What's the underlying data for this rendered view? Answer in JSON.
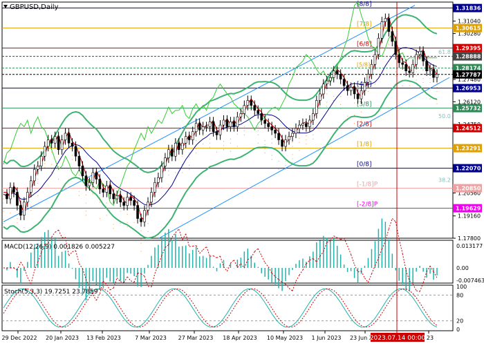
{
  "symbol_label": "GBPUSD,Daily",
  "macd_label": "MACD(12,26,9) 0.001826 0.005227",
  "stoch_label": "Stoch(5,3,3) 19.7251 23.7859",
  "colors": {
    "resistance": "#cc0000",
    "support": "#00008b",
    "murray_gold": "#e0a000",
    "green_line": "#00a000",
    "channel": "#1e90ff",
    "bollinger": "#3cb371",
    "envelope": "#32cd32",
    "macd_hist": "#20b2aa",
    "cloud": "#f4a460",
    "fib": "#aadcdc",
    "minus2": "#ee00ee",
    "cursor": "#cc0000"
  },
  "chart_data": {
    "type": "line",
    "title": "GBPUSD,Daily",
    "ylim": [
      1.178,
      1.322
    ],
    "price_ticks": [
      "1.31040",
      "1.30280",
      "1.28020",
      "1.27480",
      "1.26120",
      "1.24750",
      "1.20560",
      "1.19160",
      "1.17800"
    ],
    "date_labels": [
      "29 Dec 2022",
      "20 Jan 2023",
      "13 Feb 2023",
      "7 Mar 2023",
      "27 Mar 2023",
      "18 Apr 2023",
      "10 May 2023",
      "1 Jun 2023",
      "23 Jun 2023",
      "23"
    ],
    "cursor_date": "2023.07.14 00:00",
    "levels": [
      {
        "label": "[8/8]",
        "price": "1.31836",
        "value": 1.31836,
        "color": "#00008b",
        "box": "#00008b"
      },
      {
        "label": "[7/8]",
        "price": "1.30615",
        "value": 1.30615,
        "color": "#e0a000",
        "box": "#e0a000"
      },
      {
        "label": "[6/8]",
        "price": "1.29395",
        "value": 1.29395,
        "color": "#cc0000",
        "box": "#cc0000"
      },
      {
        "label": "",
        "price": "1.28888",
        "value": 1.28888,
        "color": "#444444",
        "box": "#444444"
      },
      {
        "label": "",
        "price": "1.28174",
        "value": 1.28174,
        "color": "#2e8b57",
        "box": "#2e8b57"
      },
      {
        "label": "",
        "price": "1.27787",
        "value": 1.27787,
        "color": "#000000",
        "box": "#000000"
      },
      {
        "label": "[4/8]",
        "price": "1.26953",
        "value": 1.26953,
        "color": "#00008b",
        "box": "#00008b"
      },
      {
        "label": "[3/8]",
        "price": "1.25732",
        "value": 1.25732,
        "color": "#2e8b57",
        "box": "#2e8b57"
      },
      {
        "label": "[2/8]",
        "price": "1.24512",
        "value": 1.24512,
        "color": "#cc0000",
        "box": "#cc0000"
      },
      {
        "label": "[1/8]",
        "price": "1.23291",
        "value": 1.23291,
        "color": "#e0a000",
        "box": "#e0a000"
      },
      {
        "label": "[0/8]",
        "price": "1.22070",
        "value": 1.2207,
        "color": "#00008b",
        "box": "#00008b"
      },
      {
        "label": "[-1/8]P",
        "price": "1.20850",
        "value": 1.2085,
        "color": "#f0a0a0",
        "box": "#f0a0a0"
      },
      {
        "label": "[-2/8]P",
        "price": "1.19629",
        "value": 1.19629,
        "color": "#ee00ee",
        "box": "#ee00ee"
      }
    ],
    "extra_level_labels": [
      {
        "label": "[5/8]",
        "value": 1.2817
      },
      {
        "label": "61.8",
        "value": 1.2895
      },
      {
        "label": "50.0",
        "value": 1.2505
      },
      {
        "label": "38.2",
        "value": 1.2115
      }
    ],
    "close": [
      1.205,
      1.202,
      1.209,
      1.206,
      1.198,
      1.192,
      1.2,
      1.206,
      1.213,
      1.22,
      1.222,
      1.228,
      1.234,
      1.238,
      1.236,
      1.24,
      1.232,
      1.238,
      1.242,
      1.236,
      1.234,
      1.228,
      1.222,
      1.216,
      1.21,
      1.212,
      1.218,
      1.214,
      1.208,
      1.206,
      1.21,
      1.205,
      1.202,
      1.204,
      1.2,
      1.198,
      1.203,
      1.201,
      1.198,
      1.19,
      1.188,
      1.195,
      1.2,
      1.206,
      1.212,
      1.215,
      1.222,
      1.227,
      1.232,
      1.228,
      1.236,
      1.232,
      1.236,
      1.24,
      1.238,
      1.243,
      1.248,
      1.244,
      1.246,
      1.246,
      1.249,
      1.243,
      1.241,
      1.247,
      1.25,
      1.246,
      1.249,
      1.246,
      1.252,
      1.254,
      1.259,
      1.262,
      1.259,
      1.256,
      1.254,
      1.25,
      1.248,
      1.246,
      1.244,
      1.242,
      1.238,
      1.234,
      1.238,
      1.24,
      1.242,
      1.245,
      1.247,
      1.248,
      1.246,
      1.25,
      1.254,
      1.262,
      1.266,
      1.272,
      1.274,
      1.276,
      1.28,
      1.278,
      1.275,
      1.271,
      1.268,
      1.27,
      1.266,
      1.263,
      1.268,
      1.273,
      1.278,
      1.284,
      1.29,
      1.3,
      1.31,
      1.312,
      1.304,
      1.298,
      1.29,
      1.285,
      1.284,
      1.28,
      1.279,
      1.284,
      1.29,
      1.292,
      1.286,
      1.28,
      1.281,
      1.276,
      1.278
    ],
    "macd": {
      "hist_range": [
        -0.00746,
        0.01314
      ],
      "ticks": [
        "0.013177",
        "0.00",
        "-0.007463"
      ]
    },
    "stoch": {
      "ticks": [
        "100",
        "80",
        "20",
        "0"
      ],
      "levels": [
        80,
        20
      ]
    }
  }
}
